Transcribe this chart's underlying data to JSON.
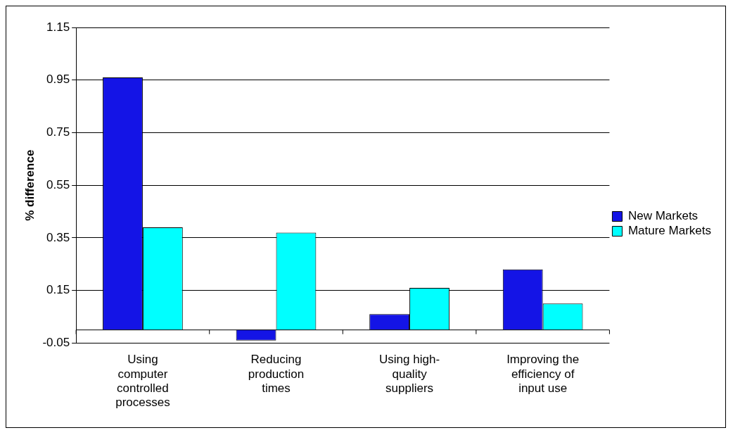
{
  "chart_data": {
    "type": "bar",
    "ylabel": "% difference",
    "categories": [
      "Using computer controlled processes",
      "Reducing production times",
      "Using high-quality suppliers",
      "Improving the efficiency of input use"
    ],
    "series": [
      {
        "name": "New Markets",
        "color": "#1414e6",
        "values": [
          0.96,
          -0.04,
          0.06,
          0.23
        ]
      },
      {
        "name": "Mature Markets",
        "color": "#00ffff",
        "values": [
          0.39,
          0.37,
          0.16,
          0.1
        ]
      }
    ],
    "ylim": [
      -0.05,
      1.15
    ],
    "yticks": [
      -0.05,
      0.15,
      0.35,
      0.55,
      0.75,
      0.95,
      1.15
    ],
    "grid": "y",
    "legend": "right"
  }
}
